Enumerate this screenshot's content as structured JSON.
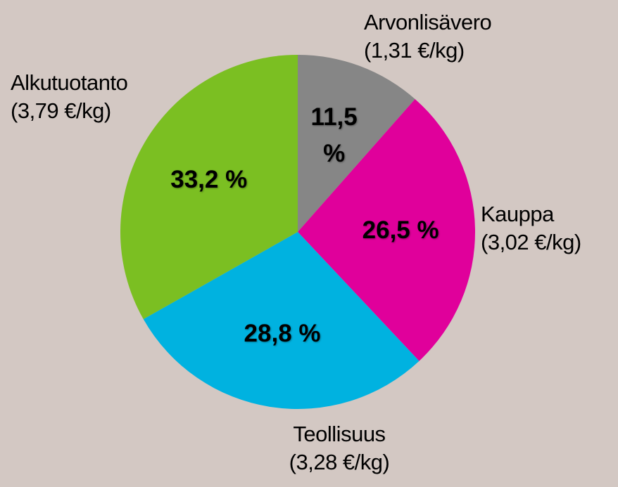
{
  "chart_data": {
    "type": "pie",
    "categories": [
      "Arvonlisävero",
      "Kauppa",
      "Teollisuus",
      "Alkutuotanto"
    ],
    "sublabels": [
      "(1,31 €/kg)",
      "(3,02 €/kg)",
      "(3,28 €/kg)",
      "(3,79 €/kg)"
    ],
    "values": [
      11.5,
      26.5,
      28.8,
      33.2
    ],
    "value_labels": [
      "11,5 %",
      "26,5 %",
      "28,8 %",
      "33,2 %"
    ],
    "colors": [
      "#868686",
      "#e0009b",
      "#00b2e0",
      "#7bbf22"
    ]
  }
}
